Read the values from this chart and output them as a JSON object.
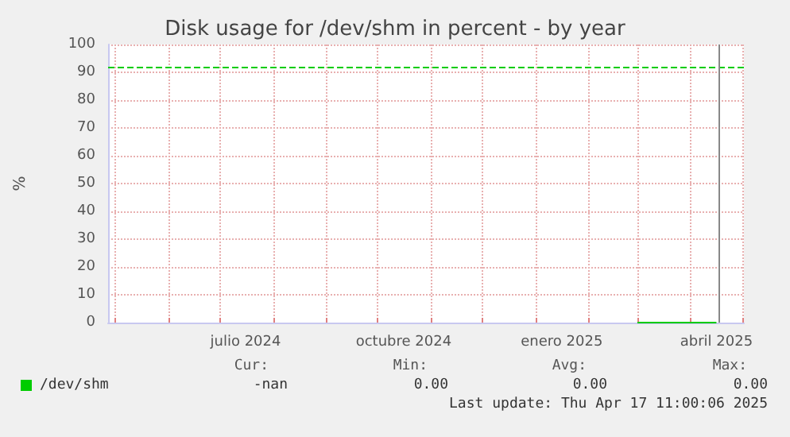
{
  "chart_data": {
    "type": "line",
    "title": "Disk usage for /dev/shm in percent - by year",
    "ylabel": "%",
    "series": [
      {
        "name": "/dev/shm",
        "color": "#00cc00",
        "x": [
          "2025-03-01",
          "2025-04-16"
        ],
        "values": [
          0,
          0
        ]
      }
    ],
    "xlim": [
      "2024-04-27",
      "2025-05-02"
    ],
    "xticks": [
      {
        "value": "2024-05-01",
        "label": null
      },
      {
        "value": "2024-06-01",
        "label": null
      },
      {
        "value": "2024-07-01",
        "label": null
      },
      {
        "value": "2024-07-16",
        "label": "julio 2024"
      },
      {
        "value": "2024-08-01",
        "label": null
      },
      {
        "value": "2024-09-01",
        "label": null
      },
      {
        "value": "2024-10-01",
        "label": null
      },
      {
        "value": "2024-10-16",
        "label": "octubre 2024"
      },
      {
        "value": "2024-11-01",
        "label": null
      },
      {
        "value": "2024-12-01",
        "label": null
      },
      {
        "value": "2025-01-01",
        "label": null
      },
      {
        "value": "2025-01-16",
        "label": "enero 2025"
      },
      {
        "value": "2025-02-01",
        "label": null
      },
      {
        "value": "2025-03-01",
        "label": null
      },
      {
        "value": "2025-04-01",
        "label": null
      },
      {
        "value": "2025-04-16",
        "label": "abril 2025"
      },
      {
        "value": "2025-05-01",
        "label": null
      }
    ],
    "ylim": [
      0,
      100
    ],
    "yticks": [
      0,
      10,
      20,
      30,
      40,
      50,
      60,
      70,
      80,
      90,
      100
    ],
    "ref_lines": [
      {
        "axis": "y",
        "value": 92,
        "label": null,
        "color": "#00cc00",
        "line_style": "dashed"
      },
      {
        "axis": "x",
        "value": "2025-04-17",
        "label": null,
        "color": "#888888",
        "line_style": "solid"
      }
    ],
    "grid": true,
    "legend": "bottom left",
    "marker": "none",
    "line_style": "solid",
    "annotations": [
      "Cur:",
      "Min:",
      "Avg:",
      "Max:",
      "-nan",
      "0.00",
      "0.00",
      "0.00",
      "Last update: Thu Apr 17 11:00:06 2025"
    ]
  }
}
